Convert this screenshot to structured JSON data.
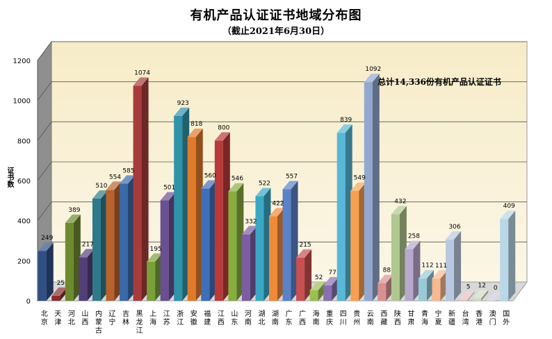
{
  "chart_data": {
    "type": "bar",
    "title": "有机产品认证证书地域分布图",
    "subtitle": "（截止2021年6月30日）",
    "ylabel": "证书数",
    "ylim": [
      0,
      1200
    ],
    "yticks": [
      0,
      200,
      400,
      600,
      800,
      1000,
      1200
    ],
    "grid": true,
    "annotation": "总计14,336份有机产品认证证书",
    "categories": [
      "北京",
      "天津",
      "河北",
      "山西",
      "内蒙古",
      "辽宁",
      "吉林",
      "黑龙江",
      "上海",
      "江苏",
      "浙江",
      "安徽",
      "福建",
      "江西",
      "山东",
      "河南",
      "湖北",
      "湖南",
      "广东",
      "广西",
      "海南",
      "重庆",
      "四川",
      "贵州",
      "云南",
      "西藏",
      "陕西",
      "甘肃",
      "青海",
      "宁夏",
      "新疆",
      "台湾",
      "香港",
      "澳门",
      "国外"
    ],
    "values": [
      249,
      25,
      389,
      217,
      510,
      554,
      585,
      1074,
      195,
      501,
      923,
      818,
      560,
      800,
      546,
      332,
      522,
      422,
      557,
      215,
      52,
      77,
      839,
      549,
      1092,
      88,
      432,
      258,
      112,
      111,
      306,
      5,
      12,
      0,
      409
    ],
    "colors": [
      "#2f4f86",
      "#8b2a2a",
      "#6e8a2e",
      "#533f78",
      "#2f7a8a",
      "#b8632e",
      "#3b6aa8",
      "#a83c3c",
      "#7aa03a",
      "#6a4f92",
      "#2f93aa",
      "#e07a2a",
      "#3f6fb8",
      "#b83a3a",
      "#88ad3e",
      "#7a5da2",
      "#3aa8c4",
      "#f08a3a",
      "#5a82c8",
      "#c85050",
      "#9ac050",
      "#8870b0",
      "#58b8d8",
      "#f8a050",
      "#92a8d0",
      "#d89090",
      "#b0c890",
      "#b8a8cc",
      "#98cad8",
      "#f8b890",
      "#b8c8e0",
      "#e8c0c0",
      "#d0dcc0",
      "#d0c8dc",
      "#b8d8e8"
    ]
  }
}
